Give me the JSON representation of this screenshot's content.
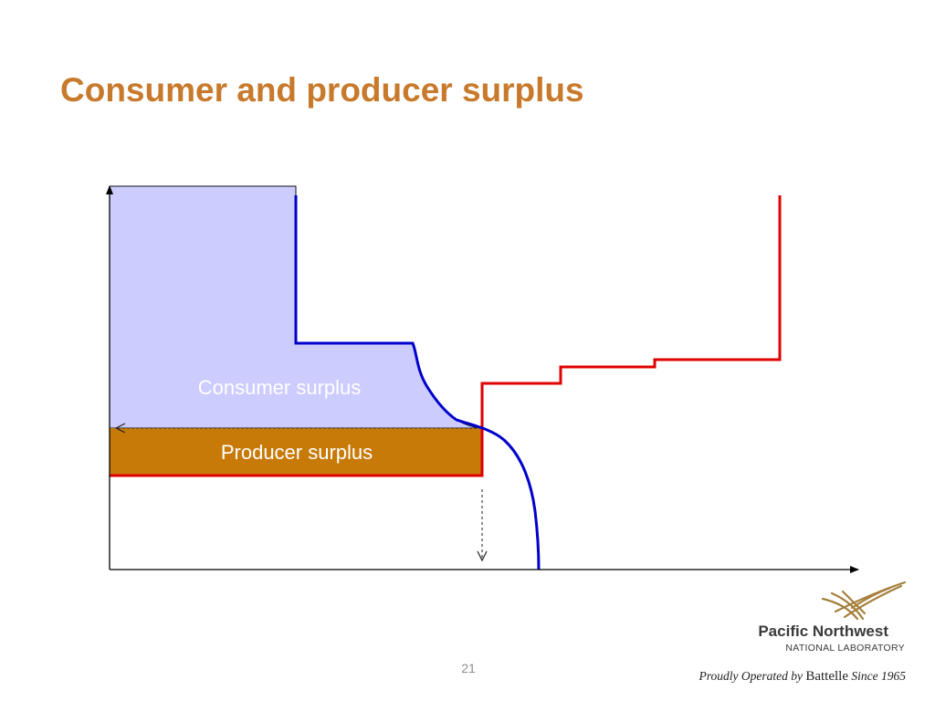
{
  "slide": {
    "title": "Consumer and producer surplus",
    "page_number": "21"
  },
  "diagram": {
    "consumer_surplus_label": "Consumer surplus",
    "producer_surplus_label": "Producer surplus",
    "colors": {
      "consumer_surplus_fill": "#ccccff",
      "producer_surplus_fill": "#c77a08",
      "demand_curve": "#0000cc",
      "supply_curve": "#e00000",
      "axes": "#000000",
      "label_text": "#ffffff"
    }
  },
  "footer": {
    "org_name": "Pacific Northwest",
    "org_sub": "NATIONAL LABORATORY",
    "tagline_prefix": "Proudly Operated by ",
    "tagline_brand": "Battelle",
    "tagline_suffix": " Since 1965",
    "logo_icon": "pnnl-logo-icon",
    "logo_color": "#a6803c"
  }
}
